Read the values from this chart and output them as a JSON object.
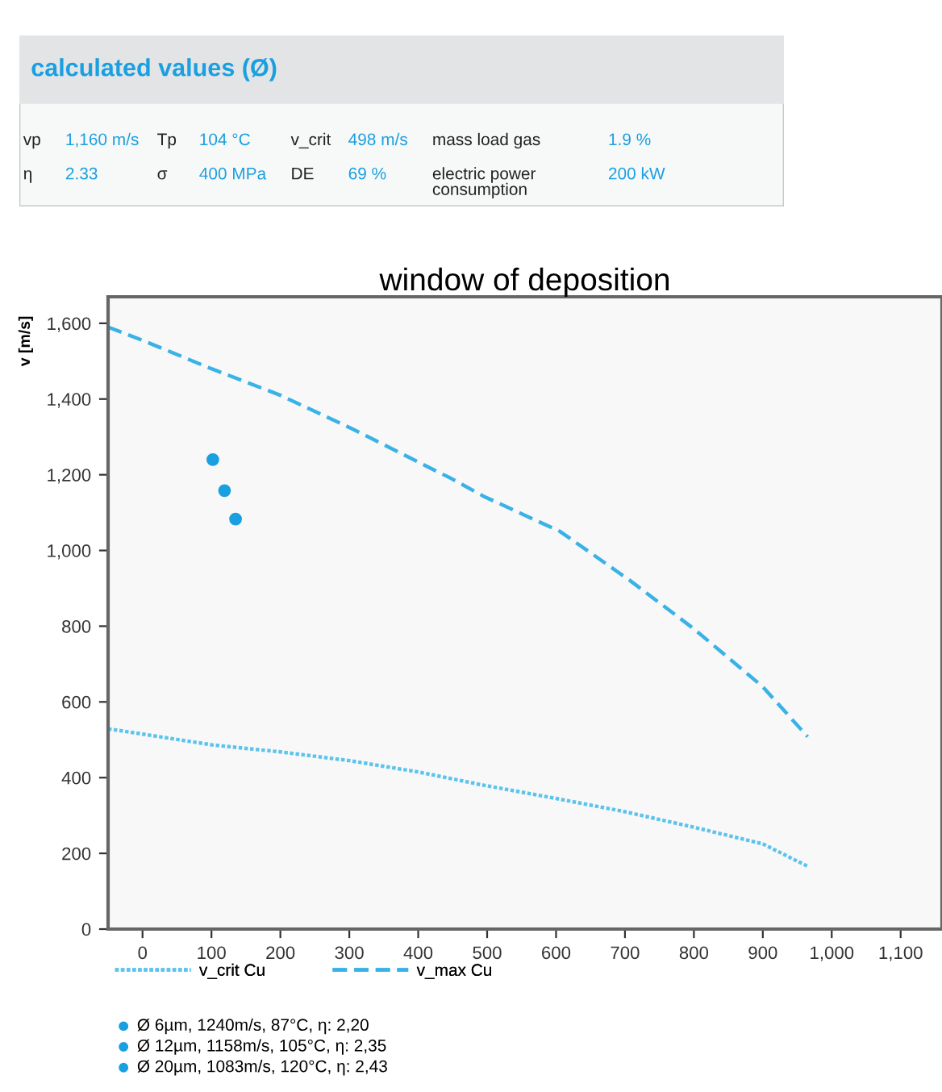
{
  "chart_data": [
    {
      "type": "other",
      "title": "calculated values (Ø)",
      "annotations": [
        "vp",
        "1,160 m/s",
        "Tp",
        "104 °C",
        "v_crit",
        "498 m/s",
        "mass load gas",
        "1.9 %",
        "η",
        "2.33",
        "σ",
        "400 MPa",
        "DE",
        "69 %",
        "electric power consumption",
        "200 kW"
      ]
    },
    {
      "type": "line",
      "title": "window of deposition",
      "ylabel": "v [m/s]",
      "xlim": [
        -50,
        1160
      ],
      "xticks": [
        0,
        100,
        200,
        300,
        400,
        {
          "value": 500,
          "label": "500"
        },
        600,
        700,
        800,
        900,
        {
          "value": 1000,
          "label": "1,000"
        },
        {
          "value": 1100,
          "label": "1,100"
        }
      ],
      "ylim": [
        0,
        1670
      ],
      "yticks": [
        0,
        200,
        400,
        600,
        800,
        {
          "value": 1000,
          "label": "1,000"
        },
        {
          "value": 1200,
          "label": "1,200"
        },
        {
          "value": 1400,
          "label": "1,400"
        },
        {
          "value": 1600,
          "label": "1,600"
        }
      ],
      "grid": false,
      "legend": "bottom",
      "series": [
        {
          "name": "v_crit Cu",
          "color": "#5cc3ec",
          "line_style": "dotted",
          "x": [
            -50,
            0,
            103,
            200,
            300,
            400,
            495,
            600,
            700,
            800,
            900,
            965
          ],
          "values": [
            529,
            515,
            486,
            468,
            445,
            415,
            380,
            345,
            310,
            269,
            225,
            166
          ]
        },
        {
          "name": "v_max Cu",
          "color": "#3ab2e6",
          "line_style": "dashed",
          "x": [
            -50,
            0,
            100,
            200,
            300,
            448,
            495,
            606,
            707,
            800,
            900,
            965
          ],
          "values": [
            1590,
            1555,
            1480,
            1410,
            1325,
            1190,
            1143,
            1050,
            921,
            793,
            640,
            508
          ]
        },
        {
          "name": "Ø 6µm, 1240m/s, 87°C, η: 2,20",
          "type": "scatter",
          "color": "#1a9fe0",
          "marker": "circle",
          "x": [
            102
          ],
          "values": [
            1240
          ]
        },
        {
          "name": "Ø 12µm, 1158m/s, 105°C, η: 2,35",
          "type": "scatter",
          "color": "#1a9fe0",
          "marker": "circle",
          "x": [
            119
          ],
          "values": [
            1158
          ]
        },
        {
          "name": "Ø 20µm, 1083m/s, 120°C, η: 2,43",
          "type": "scatter",
          "color": "#1a9fe0",
          "marker": "circle",
          "x": [
            135
          ],
          "values": [
            1083
          ]
        }
      ]
    }
  ]
}
